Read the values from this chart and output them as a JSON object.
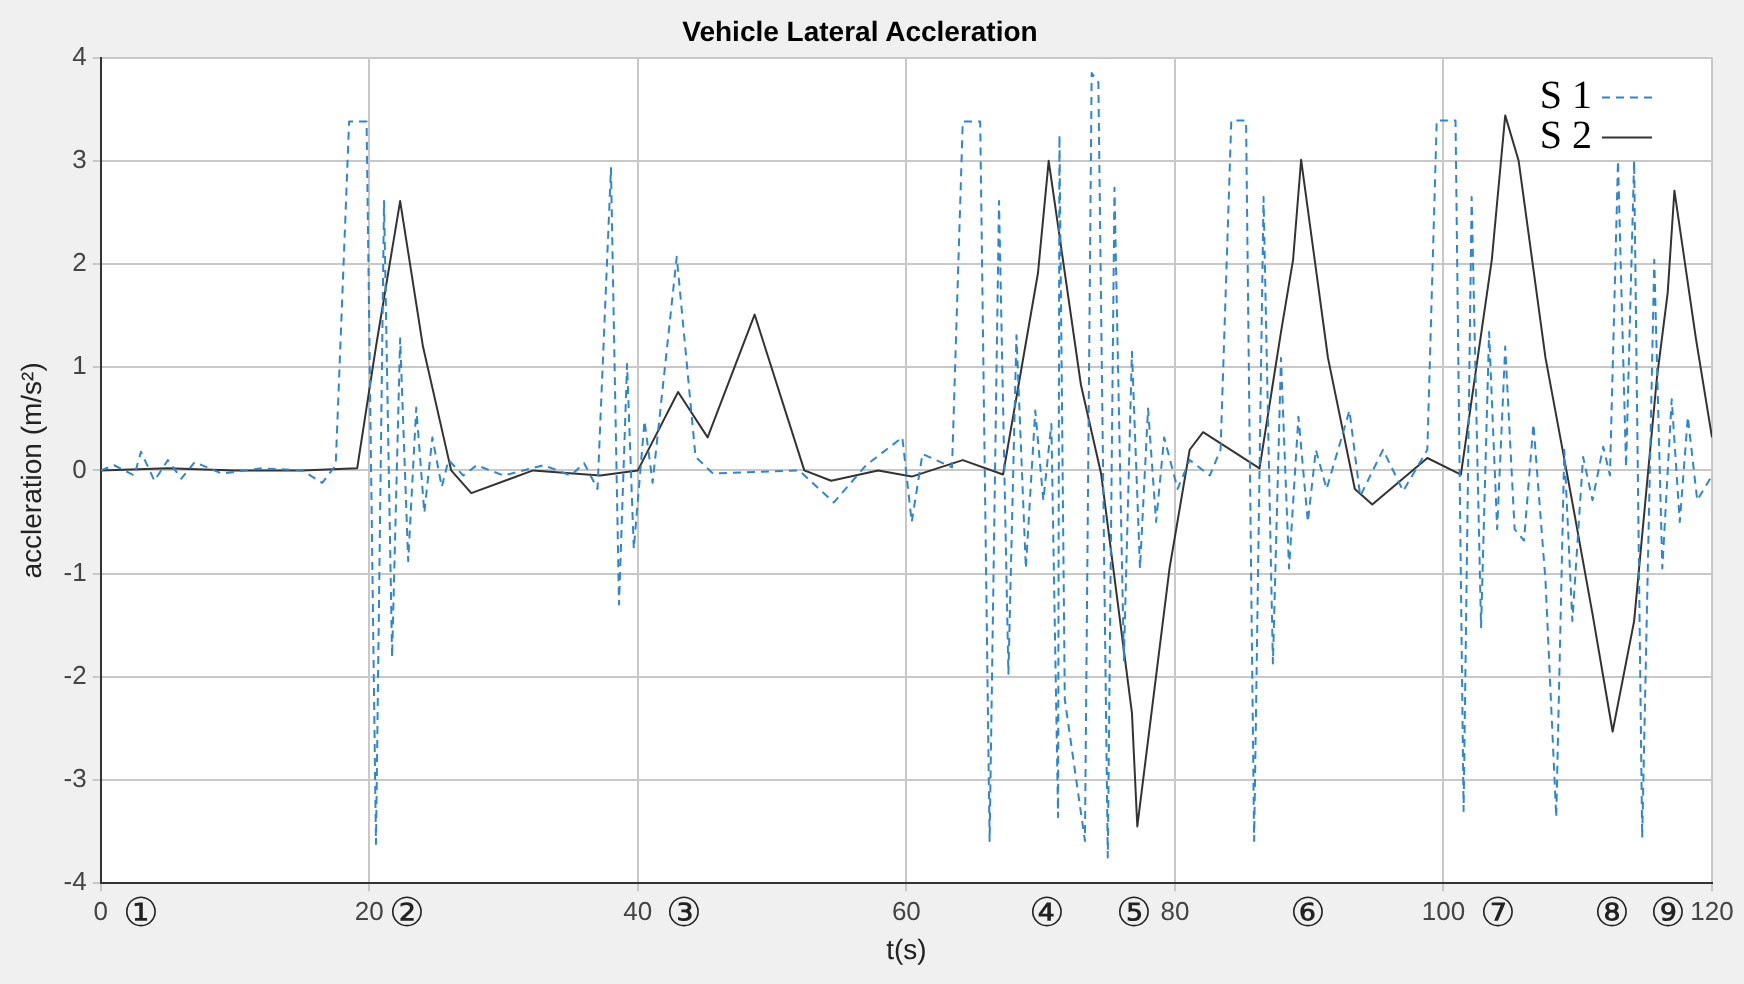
{
  "chart_data": {
    "type": "line",
    "title": "Vehicle Lateral Accleration",
    "xlabel": "t(s)",
    "ylabel": "accleration (m/s²)",
    "xlim": [
      0,
      120
    ],
    "xticks": [
      0,
      20,
      40,
      60,
      80,
      100,
      120
    ],
    "ylim": [
      -4,
      4
    ],
    "yticks": [
      -4,
      -3,
      -2,
      -1,
      0,
      1,
      2,
      3,
      4
    ],
    "grid": true,
    "legend": "top right",
    "marker": "none",
    "series": [
      {
        "name": "S 1",
        "color": "#2f86d0",
        "line_style": "dashed",
        "x": [
          0,
          1,
          2.5,
          3,
          4,
          5,
          6,
          7,
          9,
          12,
          15,
          16.5,
          17.5,
          18.5,
          19.8,
          20.5,
          21.1,
          21.7,
          22.3,
          22.9,
          23.5,
          24.1,
          24.7,
          25.4,
          25.9,
          27,
          28,
          30,
          33,
          35,
          36,
          37,
          38,
          38.6,
          39.2,
          39.7,
          40.5,
          41.1,
          42.9,
          44.3,
          45.6,
          52,
          54.6,
          57,
          59.7,
          60.4,
          61.2,
          63.4,
          64.2,
          65.5,
          66.2,
          66.9,
          67.6,
          68.2,
          68.9,
          69.6,
          70.2,
          70.8,
          71.3,
          71.4,
          71.8,
          73.3,
          73.8,
          74.3,
          75,
          75.5,
          76.2,
          76.8,
          77.4,
          78,
          78.6,
          79.2,
          80.2,
          81.1,
          82.6,
          83.4,
          84.2,
          85.3,
          85.9,
          86.6,
          87.3,
          87.9,
          88.5,
          89.2,
          89.9,
          90.5,
          91.3,
          93,
          93.8,
          95.5,
          97,
          98.8,
          99.5,
          100.9,
          101.5,
          102.1,
          102.8,
          103.4,
          104,
          104.6,
          105.3,
          106,
          106.7,
          107.6,
          108.4,
          109,
          109.6,
          110.4,
          111.1,
          111.9,
          112.4,
          113,
          113.6,
          114.2,
          114.8,
          115.7,
          116.3,
          117,
          117.6,
          118.2,
          118.9,
          120
        ],
        "values": [
          0,
          0.05,
          -0.05,
          0.18,
          -0.1,
          0.1,
          -0.08,
          0.08,
          -0.03,
          0.02,
          0,
          -0.12,
          0.05,
          3.38,
          3.38,
          -3.62,
          2.61,
          -1.81,
          1.28,
          -0.88,
          0.61,
          -0.41,
          0.32,
          -0.16,
          0.1,
          -0.05,
          0.05,
          -0.05,
          0.05,
          -0.05,
          0.07,
          -0.18,
          2.93,
          -1.3,
          1.03,
          -0.76,
          0.48,
          -0.12,
          2.07,
          0.13,
          -0.03,
          0,
          -0.31,
          0.05,
          0.32,
          -0.5,
          0.16,
          0.03,
          3.38,
          3.38,
          -3.59,
          2.61,
          -1.97,
          1.31,
          -0.95,
          0.58,
          -0.29,
          0.45,
          -3.36,
          3.25,
          -2.22,
          -3.59,
          3.85,
          3.76,
          -3.75,
          2.74,
          -1.84,
          1.15,
          -0.95,
          0.6,
          -0.5,
          0.32,
          -0.18,
          0.1,
          -0.05,
          0.2,
          3.39,
          3.39,
          -3.59,
          2.65,
          -1.87,
          1.09,
          -0.95,
          0.52,
          -0.5,
          0.2,
          -0.18,
          0.58,
          -0.25,
          0.2,
          -0.2,
          0.2,
          3.39,
          3.39,
          -3.3,
          2.65,
          -1.52,
          1.34,
          -0.57,
          1.2,
          -0.57,
          -0.68,
          0.45,
          -1.07,
          -3.36,
          0.2,
          -1.46,
          0.13,
          -0.29,
          0.23,
          -0.05,
          3,
          0.03,
          3,
          -3.56,
          2.04,
          -0.95,
          0.69,
          -0.5,
          0.52,
          -0.29,
          -0.05
        ]
      },
      {
        "name": "S 2",
        "color": "#333333",
        "line_style": "solid",
        "x": [
          0,
          5,
          10,
          15,
          19.1,
          20.5,
          22.3,
          24,
          26.1,
          27.6,
          32.2,
          37.2,
          40,
          43,
          45.2,
          48.7,
          52.4,
          54.4,
          57.9,
          60.4,
          64.2,
          67.2,
          69.8,
          70.6,
          73,
          74.5,
          76.8,
          77.2,
          79.6,
          81.1,
          82.1,
          86.3,
          87.9,
          88.8,
          89.4,
          91.4,
          93.4,
          94.7,
          98.8,
          101.3,
          103.6,
          104.6,
          105.6,
          107.6,
          109.6,
          111.1,
          112.6,
          114.2,
          115.9,
          116.7,
          117.2,
          118.8,
          120
        ],
        "values": [
          0,
          0.02,
          0,
          0,
          0.02,
          1.2,
          2.61,
          1.2,
          0,
          -0.22,
          0,
          -0.05,
          0,
          0.76,
          0.32,
          1.51,
          0,
          -0.1,
          0,
          -0.06,
          0.1,
          -0.04,
          1.91,
          3,
          0.83,
          -0.03,
          -2.35,
          -3.45,
          -0.95,
          0.2,
          0.37,
          0.02,
          1.34,
          2.04,
          3.01,
          1.09,
          -0.18,
          -0.33,
          0.12,
          -0.04,
          2.04,
          3.44,
          3,
          1.09,
          -0.31,
          -1.39,
          -2.53,
          -1.46,
          0.9,
          1.72,
          2.71,
          1.28,
          0.32
        ]
      }
    ],
    "annotations": [
      "①",
      "②",
      "③",
      "④",
      "⑤",
      "⑥",
      "⑦",
      "⑧",
      "⑨"
    ]
  }
}
